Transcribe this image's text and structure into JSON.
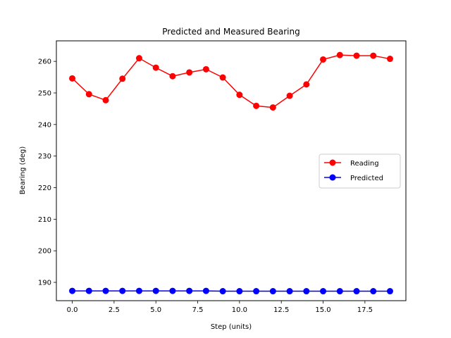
{
  "chart_data": {
    "type": "line",
    "title": "Predicted and Measured Bearing",
    "xlabel": "Step (units)",
    "ylabel": "Bearing (deg)",
    "xlim": [
      -0.95,
      19.95
    ],
    "ylim": [
      184.2,
      266.5
    ],
    "x": [
      0,
      1,
      2,
      3,
      4,
      5,
      6,
      7,
      8,
      9,
      10,
      11,
      12,
      13,
      14,
      15,
      16,
      17,
      18,
      19
    ],
    "x_ticks": [
      0.0,
      2.5,
      5.0,
      7.5,
      10.0,
      12.5,
      15.0,
      17.5
    ],
    "x_tick_labels": [
      "0.0",
      "2.5",
      "5.0",
      "7.5",
      "10.0",
      "12.5",
      "15.0",
      "17.5"
    ],
    "y_ticks": [
      190,
      200,
      210,
      220,
      230,
      240,
      250,
      260
    ],
    "y_tick_labels": [
      "190",
      "200",
      "210",
      "220",
      "230",
      "240",
      "250",
      "260"
    ],
    "grid": false,
    "legend_position": "center-right",
    "series": [
      {
        "name": "Reading",
        "color": "#ff0000",
        "marker": "circle",
        "values": [
          254.6,
          249.6,
          247.7,
          254.5,
          261.0,
          258.0,
          255.3,
          256.5,
          257.5,
          254.9,
          249.4,
          245.9,
          245.4,
          249.1,
          252.7,
          260.6,
          262.0,
          261.8,
          261.8,
          260.8
        ]
      },
      {
        "name": "Predicted",
        "color": "#0000ff",
        "marker": "circle",
        "values": [
          187.3,
          187.3,
          187.3,
          187.3,
          187.3,
          187.3,
          187.3,
          187.3,
          187.3,
          187.2,
          187.2,
          187.2,
          187.2,
          187.2,
          187.2,
          187.2,
          187.2,
          187.2,
          187.2,
          187.2
        ]
      }
    ]
  }
}
